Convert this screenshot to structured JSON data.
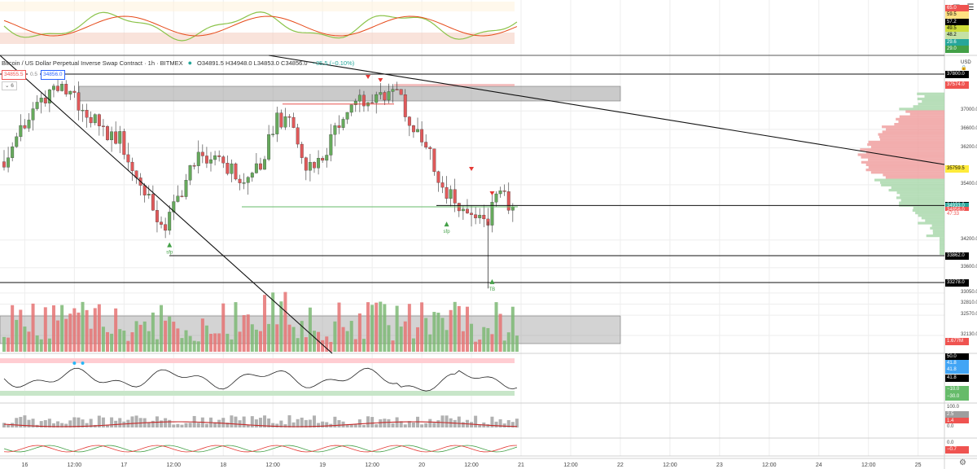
{
  "header": {
    "symbol": "Bitcoin / US Dollar Perpetual Inverse Swap Contract · 1h · BITMEX",
    "ohlc": "O34891.5 H34948.0 L34853.0 C34856.0",
    "change": "−35.5 (−0.10%)",
    "bid": "34855.5",
    "spread": "0.5",
    "ask": "34856.0",
    "indicator_count": "6",
    "currency": "USD"
  },
  "price_axis": {
    "ticks": [
      "37000.0",
      "36600.0",
      "36200.0",
      "35400.0",
      "34200.0",
      "33600.0",
      "33050.0",
      "32810.0",
      "32570.0",
      "32130.0"
    ],
    "tick_values": [
      37000,
      36600,
      36200,
      35400,
      34200,
      33600,
      33050,
      32810,
      32570,
      32130
    ],
    "labels": [
      {
        "text": "37800.0",
        "value": 37800,
        "bg": "#000000",
        "fg": "#ffffff"
      },
      {
        "text": "37574.0",
        "value": 37574,
        "bg": "#ef5350",
        "fg": "#ffffff"
      },
      {
        "text": "35759.5",
        "value": 35759.5,
        "bg": "#ffeb3b",
        "fg": "#000000"
      },
      {
        "text": "34950.0",
        "value": 34950,
        "bg": "#000000",
        "fg": "#ffffff"
      },
      {
        "text": "34933.0",
        "value": 34933,
        "bg": "#26a69a",
        "fg": "#ffffff"
      },
      {
        "text": "34856.0",
        "value": 34856,
        "bg": "#ef5350",
        "fg": "#ffffff"
      },
      {
        "text": "47:33",
        "value": 34760,
        "bg": "#ffffff",
        "fg": "#ef5350"
      },
      {
        "text": "33862.0",
        "value": 33862,
        "bg": "#000000",
        "fg": "#ffffff"
      },
      {
        "text": "33278.0",
        "value": 33278,
        "bg": "#000000",
        "fg": "#ffffff"
      },
      {
        "text": "1.677M",
        "value": 32000,
        "bg": "#ef5350",
        "fg": "#ffffff"
      }
    ]
  },
  "osc_top_labels": [
    {
      "text": "65.0",
      "bg": "#ef5350",
      "fg": "#ffffff"
    },
    {
      "text": "59.5",
      "bg": "#ffe082",
      "fg": "#000000"
    },
    {
      "text": "57.2",
      "bg": "#000000",
      "fg": "#ffffff"
    },
    {
      "text": "49.5",
      "bg": "#cddc39",
      "fg": "#000000"
    },
    {
      "text": "48.2",
      "bg": "#c5e1a5",
      "fg": "#000000"
    },
    {
      "text": "29.6",
      "bg": "#26a69a",
      "fg": "#ffffff"
    },
    {
      "text": "29.0",
      "bg": "#43a047",
      "fg": "#ffffff"
    }
  ],
  "rsi_labels": [
    {
      "text": "50.0",
      "bg": "#000000",
      "fg": "#ffffff"
    },
    {
      "text": "41.8",
      "bg": "#42a5f5",
      "fg": "#ffffff"
    },
    {
      "text": "41.8",
      "bg": "#42a5f5",
      "fg": "#ffffff"
    },
    {
      "text": "41.8",
      "bg": "#000000",
      "fg": "#ffffff"
    },
    {
      "text": "−10.0",
      "bg": "#66bb6a",
      "fg": "#ffffff"
    },
    {
      "text": "−30.0",
      "bg": "#66bb6a",
      "fg": "#ffffff"
    }
  ],
  "hist_labels": [
    {
      "text": "100.0",
      "bg": "#ffffff",
      "fg": "#444444"
    },
    {
      "text": "2.5",
      "bg": "#9e9e9e",
      "fg": "#ffffff"
    },
    {
      "text": "1.4",
      "bg": "#ef5350",
      "fg": "#ffffff"
    },
    {
      "text": "0.0",
      "bg": "#ffffff",
      "fg": "#444444"
    }
  ],
  "osc_bottom_labels": [
    {
      "text": "0.0",
      "bg": "#ffffff",
      "fg": "#444444"
    },
    {
      "text": "−0.7",
      "bg": "#ef5350",
      "fg": "#ffffff"
    }
  ],
  "time_axis": [
    {
      "label": "16",
      "index": 5
    },
    {
      "label": "12:00",
      "index": 17
    },
    {
      "label": "17",
      "index": 29
    },
    {
      "label": "12:00",
      "index": 41
    },
    {
      "label": "18",
      "index": 53
    },
    {
      "label": "12:00",
      "index": 65
    },
    {
      "label": "19",
      "index": 77
    },
    {
      "label": "12:00",
      "index": 89
    },
    {
      "label": "20",
      "index": 101
    },
    {
      "label": "12:00",
      "index": 113
    },
    {
      "label": "21",
      "index": 125
    },
    {
      "label": "12:00",
      "index": 137
    },
    {
      "label": "22",
      "index": 149
    },
    {
      "label": "12:00",
      "index": 161
    },
    {
      "label": "23",
      "index": 173
    },
    {
      "label": "12:00",
      "index": 185
    },
    {
      "label": "24",
      "index": 197
    },
    {
      "label": "12:00",
      "index": 209
    },
    {
      "label": "25",
      "index": 221
    }
  ],
  "signal_labels": [
    "sfp",
    "sfp",
    "TB"
  ],
  "colors": {
    "up": "#66a95c",
    "down": "#e0595a",
    "grid": "#eeeeee"
  }
}
